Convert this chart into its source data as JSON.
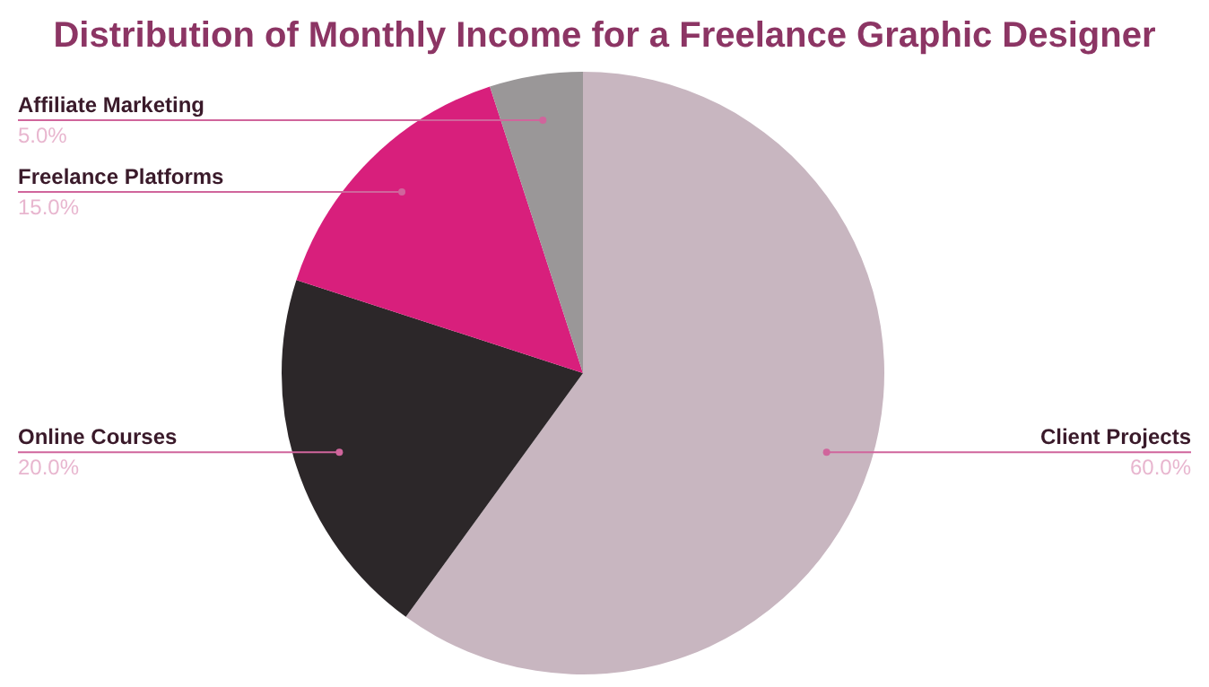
{
  "chart_data": {
    "type": "pie",
    "title": "Distribution of Monthly Income for a Freelance Graphic Designer",
    "categories": [
      "Client Projects",
      "Online Courses",
      "Freelance Platforms",
      "Affiliate Marketing"
    ],
    "values": [
      60,
      20,
      15,
      5
    ],
    "value_labels": [
      "60.0%",
      "20.0%",
      "15.0%",
      "5.0%"
    ],
    "colors": [
      "#c8b6c0",
      "#2c2729",
      "#d81f7c",
      "#9a9798"
    ],
    "legend": false
  }
}
